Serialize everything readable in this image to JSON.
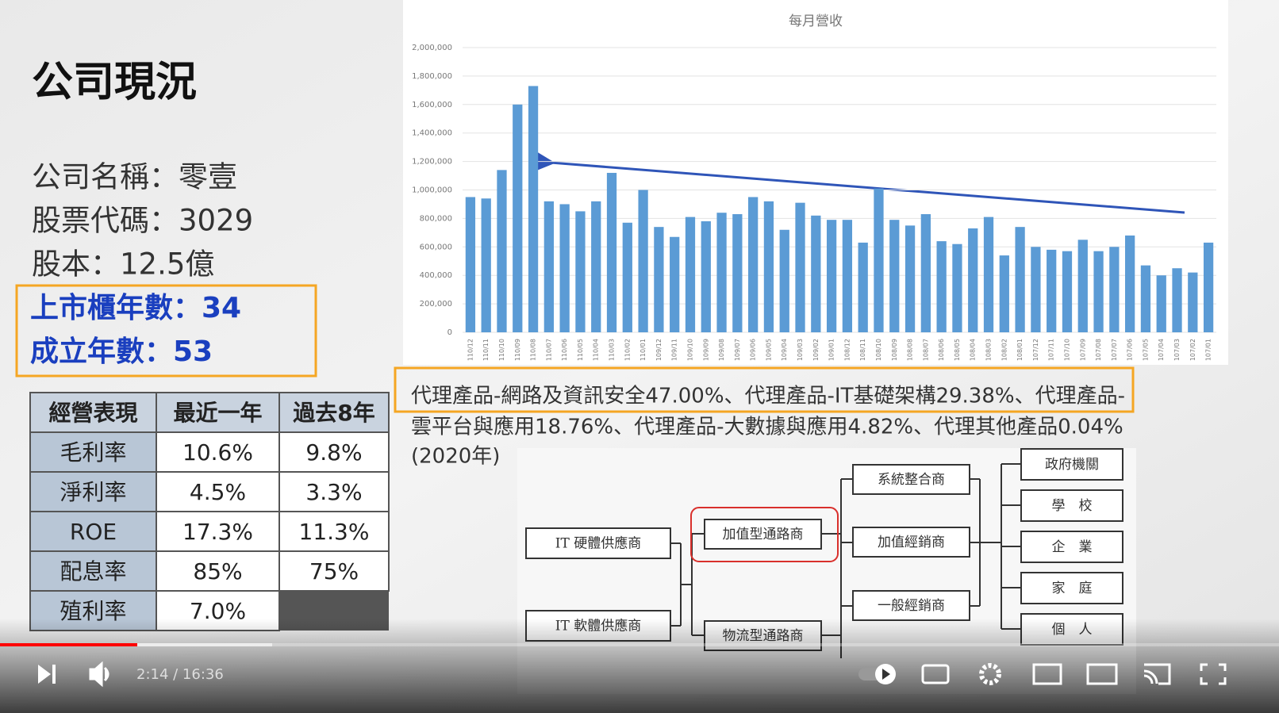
{
  "slide": {
    "title": "公司現況",
    "info": [
      "公司名稱：零壹",
      "股票代碼：3029",
      "股本：12.5億"
    ],
    "highlight": [
      "上市櫃年數：34",
      "成立年數：53"
    ],
    "table": {
      "header": [
        "經營表現",
        "最近一年",
        "過去8年"
      ],
      "rows": [
        [
          "毛利率",
          "10.6%",
          "9.8%"
        ],
        [
          "淨利率",
          "4.5%",
          "3.3%"
        ],
        [
          "ROE",
          "17.3%",
          "11.3%"
        ],
        [
          "配息率",
          "85%",
          "75%"
        ],
        [
          "殖利率",
          "7.0%"
        ]
      ]
    },
    "description": [
      "代理產品-網路及資訊安全47.00%、代理產品-IT基礎架構29.38%、代理產品-",
      "雲平台與應用18.76%、代理產品-大數據與應用4.82%、代理其他產品0.04%",
      "(2020年)"
    ],
    "diagram": {
      "nodes": [
        "IT 硬體供應商",
        "IT 軟體供應商",
        "加值型通路商",
        "物流型通路商",
        "系統整合商",
        "加值經銷商",
        "一般經銷商",
        "政府機關",
        "學　校",
        "企　業",
        "家　庭",
        "個　人"
      ]
    }
  },
  "chart_data": {
    "type": "bar",
    "title": "每月營收",
    "color": "#5b9bd5",
    "categories": [
      "110/12",
      "110/11",
      "110/10",
      "110/09",
      "110/08",
      "110/07",
      "110/06",
      "110/05",
      "110/04",
      "110/03",
      "110/02",
      "110/01",
      "109/12",
      "109/11",
      "109/10",
      "109/09",
      "109/08",
      "109/07",
      "109/06",
      "109/05",
      "109/04",
      "109/03",
      "109/02",
      "109/01",
      "108/12",
      "108/11",
      "108/10",
      "108/09",
      "108/08",
      "108/07",
      "108/06",
      "108/05",
      "108/04",
      "108/03",
      "108/02",
      "108/01",
      "107/12",
      "107/11",
      "107/10",
      "107/09",
      "107/08",
      "107/07",
      "107/06",
      "107/05",
      "107/04",
      "107/03",
      "107/02",
      "107/01"
    ],
    "values": [
      950000,
      940000,
      1140000,
      1600000,
      1730000,
      920000,
      900000,
      850000,
      920000,
      1120000,
      770000,
      1000000,
      740000,
      670000,
      810000,
      780000,
      840000,
      830000,
      950000,
      920000,
      720000,
      910000,
      820000,
      790000,
      790000,
      630000,
      1010000,
      790000,
      750000,
      830000,
      640000,
      620000,
      730000,
      810000,
      540000,
      740000,
      600000,
      580000,
      570000,
      650000,
      570000,
      600000,
      680000,
      470000,
      400000,
      450000,
      420000,
      630000
    ],
    "ylim": [
      0,
      2000000
    ],
    "yticks": [
      0,
      {
        "value": 200000,
        "label": "200,000"
      },
      {
        "value": 400000,
        "label": "400,000"
      },
      {
        "value": 600000,
        "label": "600,000"
      },
      {
        "value": 800000,
        "label": "800,000"
      },
      {
        "value": 1000000,
        "label": "1,000,000"
      },
      {
        "value": 1200000,
        "label": "1,200,000"
      },
      {
        "value": 1400000,
        "label": "1,400,000"
      },
      {
        "value": 1600000,
        "label": "1,600,000"
      },
      {
        "value": 1800000,
        "label": "1,800,000"
      },
      {
        "value": 2000000,
        "label": "2,000,000"
      }
    ],
    "grid": true
  },
  "player": {
    "time": "2:14 / 16:36"
  }
}
